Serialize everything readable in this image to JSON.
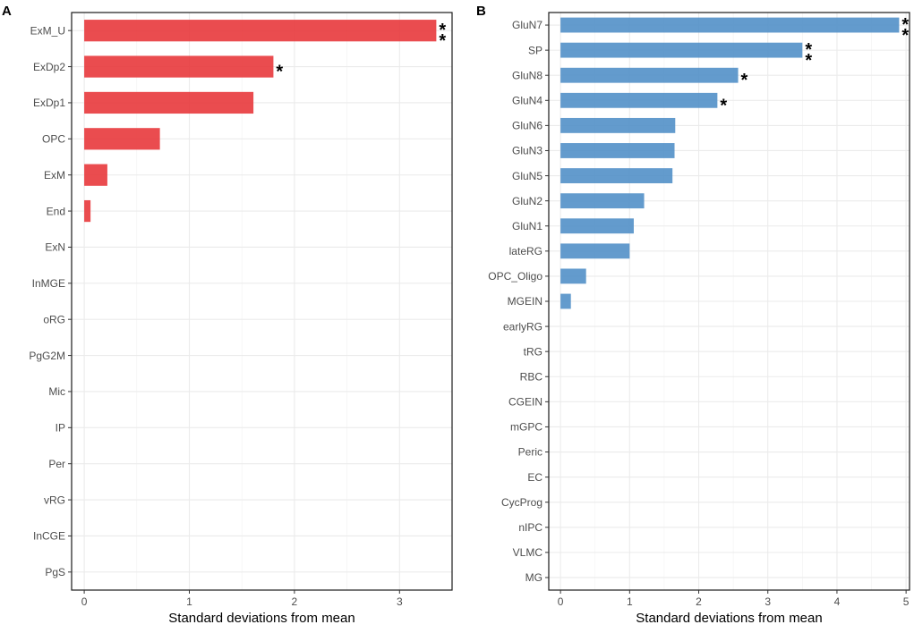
{
  "chart_data": [
    {
      "type": "bar",
      "orientation": "horizontal",
      "panel_label": "A",
      "color": "#e8383c",
      "categories": [
        "ExM_U",
        "ExDp2",
        "ExDp1",
        "OPC",
        "ExM",
        "End",
        "ExN",
        "InMGE",
        "oRG",
        "PgG2M",
        "Mic",
        "IP",
        "Per",
        "vRG",
        "InCGE",
        "PgS"
      ],
      "values": [
        3.35,
        1.8,
        1.61,
        0.72,
        0.22,
        0.06,
        0,
        0,
        0,
        0,
        0,
        0,
        0,
        0,
        0,
        0
      ],
      "annotations": [
        "**",
        "*",
        "",
        "",
        "",
        "",
        "",
        "",
        "",
        "",
        "",
        "",
        "",
        "",
        "",
        ""
      ],
      "xlabel": "Standard deviations from mean",
      "xlim": [
        -0.12,
        3.5
      ],
      "xticks": [
        "0",
        "1",
        "2",
        "3"
      ],
      "grid": true
    },
    {
      "type": "bar",
      "orientation": "horizontal",
      "panel_label": "B",
      "color": "#5290c8",
      "categories": [
        "GluN7",
        "SP",
        "GluN8",
        "GluN4",
        "GluN6",
        "GluN3",
        "GluN5",
        "GluN2",
        "GluN1",
        "lateRG",
        "OPC_Oligo",
        "MGEIN",
        "earlyRG",
        "tRG",
        "RBC",
        "CGEIN",
        "mGPC",
        "Peric",
        "EC",
        "CycProg",
        "nIPC",
        "VLMC",
        "MG"
      ],
      "values": [
        4.9,
        3.5,
        2.57,
        2.27,
        1.66,
        1.65,
        1.62,
        1.21,
        1.06,
        1.0,
        0.37,
        0.15,
        0,
        0,
        0,
        0,
        0,
        0,
        0,
        0,
        0,
        0,
        0
      ],
      "annotations": [
        "**",
        "**",
        "*",
        "*",
        "",
        "",
        "",
        "",
        "",
        "",
        "",
        "",
        "",
        "",
        "",
        "",
        "",
        "",
        "",
        "",
        "",
        "",
        ""
      ],
      "xlabel": "Standard deviations from mean",
      "xlim": [
        -0.17,
        5.05
      ],
      "xticks": [
        "0",
        "1",
        "2",
        "3",
        "4",
        "5"
      ],
      "grid": true
    }
  ]
}
